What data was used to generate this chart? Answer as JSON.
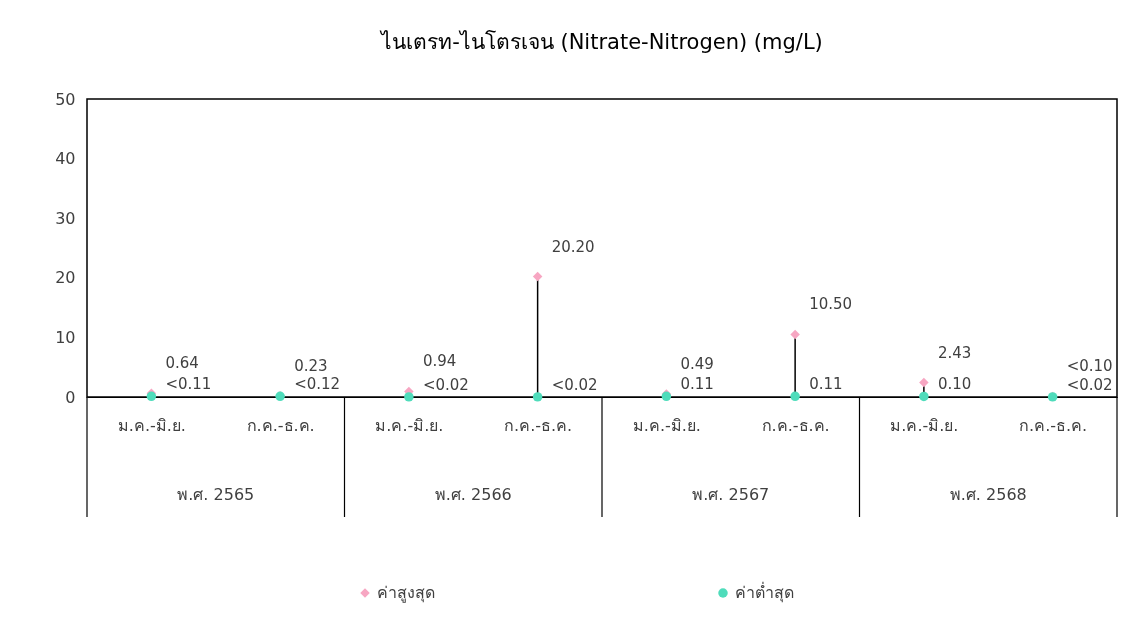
{
  "chart_data": {
    "type": "scatter",
    "title": "ไนเตรท-ไนโตรเจน (Nitrate-Nitrogen) (mg/L)",
    "categories": [
      "ม.ค.-มิ.ย.",
      "ก.ค.-ธ.ค.",
      "ม.ค.-มิ.ย.",
      "ก.ค.-ธ.ค.",
      "ม.ค.-มิ.ย.",
      "ก.ค.-ธ.ค.",
      "ม.ค.-มิ.ย.",
      "ก.ค.-ธ.ค."
    ],
    "annotations": [
      "พ.ศ. 2565",
      "พ.ศ. 2566",
      "พ.ศ. 2567",
      "พ.ศ. 2568"
    ],
    "series": [
      {
        "name": "ค่าสูงสุด",
        "color": "#f7a6c2",
        "marker": "diamond",
        "values": [
          0.64,
          0.23,
          0.94,
          20.2,
          0.49,
          10.5,
          2.43,
          0.1
        ],
        "value_labels": [
          "0.64",
          "0.23",
          "0.94",
          "20.20",
          "0.49",
          "10.50",
          "2.43",
          "<0.10"
        ]
      },
      {
        "name": "ค่าต่ำสุด",
        "color": "#4fdcbb",
        "marker": "circle",
        "values": [
          0.11,
          0.12,
          0.02,
          0.02,
          0.11,
          0.11,
          0.1,
          0.02
        ],
        "value_labels": [
          "<0.11",
          "<0.12",
          "<0.02",
          "<0.02",
          "0.11",
          "0.11",
          "0.10",
          "<0.02"
        ]
      }
    ],
    "ylim": [
      0,
      50
    ],
    "yticks": [
      0,
      10,
      20,
      30,
      40,
      50
    ],
    "grid": false,
    "legend": "bottom"
  }
}
